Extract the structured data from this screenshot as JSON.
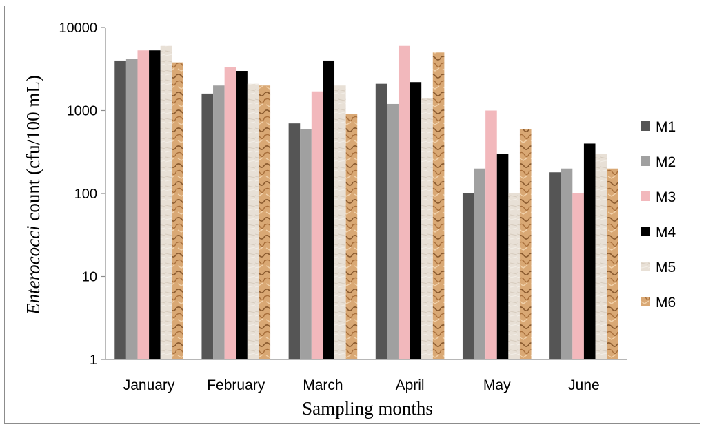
{
  "chart_data": {
    "type": "bar",
    "title": "",
    "xlabel": "Sampling months",
    "ylabel_italic": "Enterococci",
    "ylabel_rest": " count (cfu/100 mL)",
    "yscale": "log",
    "ylim": [
      1,
      10000
    ],
    "yticks": [
      "1",
      "10",
      "100",
      "1000",
      "10000"
    ],
    "categories": [
      "January",
      "February",
      "March",
      "April",
      "May",
      "June"
    ],
    "legend_position": "right",
    "grid": false,
    "series": [
      {
        "name": "M1",
        "color": "#555555",
        "values": [
          4000,
          1600,
          700,
          2100,
          100,
          180
        ]
      },
      {
        "name": "M2",
        "color": "#a0a0a0",
        "values": [
          4200,
          2000,
          600,
          1200,
          200,
          200
        ]
      },
      {
        "name": "M3",
        "color": "#f2b8bc",
        "values": [
          5300,
          3300,
          1700,
          6000,
          1000,
          100
        ]
      },
      {
        "name": "M4",
        "color": "#000000",
        "values": [
          5300,
          3000,
          4000,
          2200,
          300,
          400
        ]
      },
      {
        "name": "M5",
        "color": "#e6ddd2",
        "values": [
          6000,
          2100,
          2000,
          1400,
          100,
          300
        ]
      },
      {
        "name": "M6",
        "color": "#d4a06a",
        "values": [
          3800,
          2000,
          900,
          5000,
          600,
          200
        ]
      }
    ]
  }
}
